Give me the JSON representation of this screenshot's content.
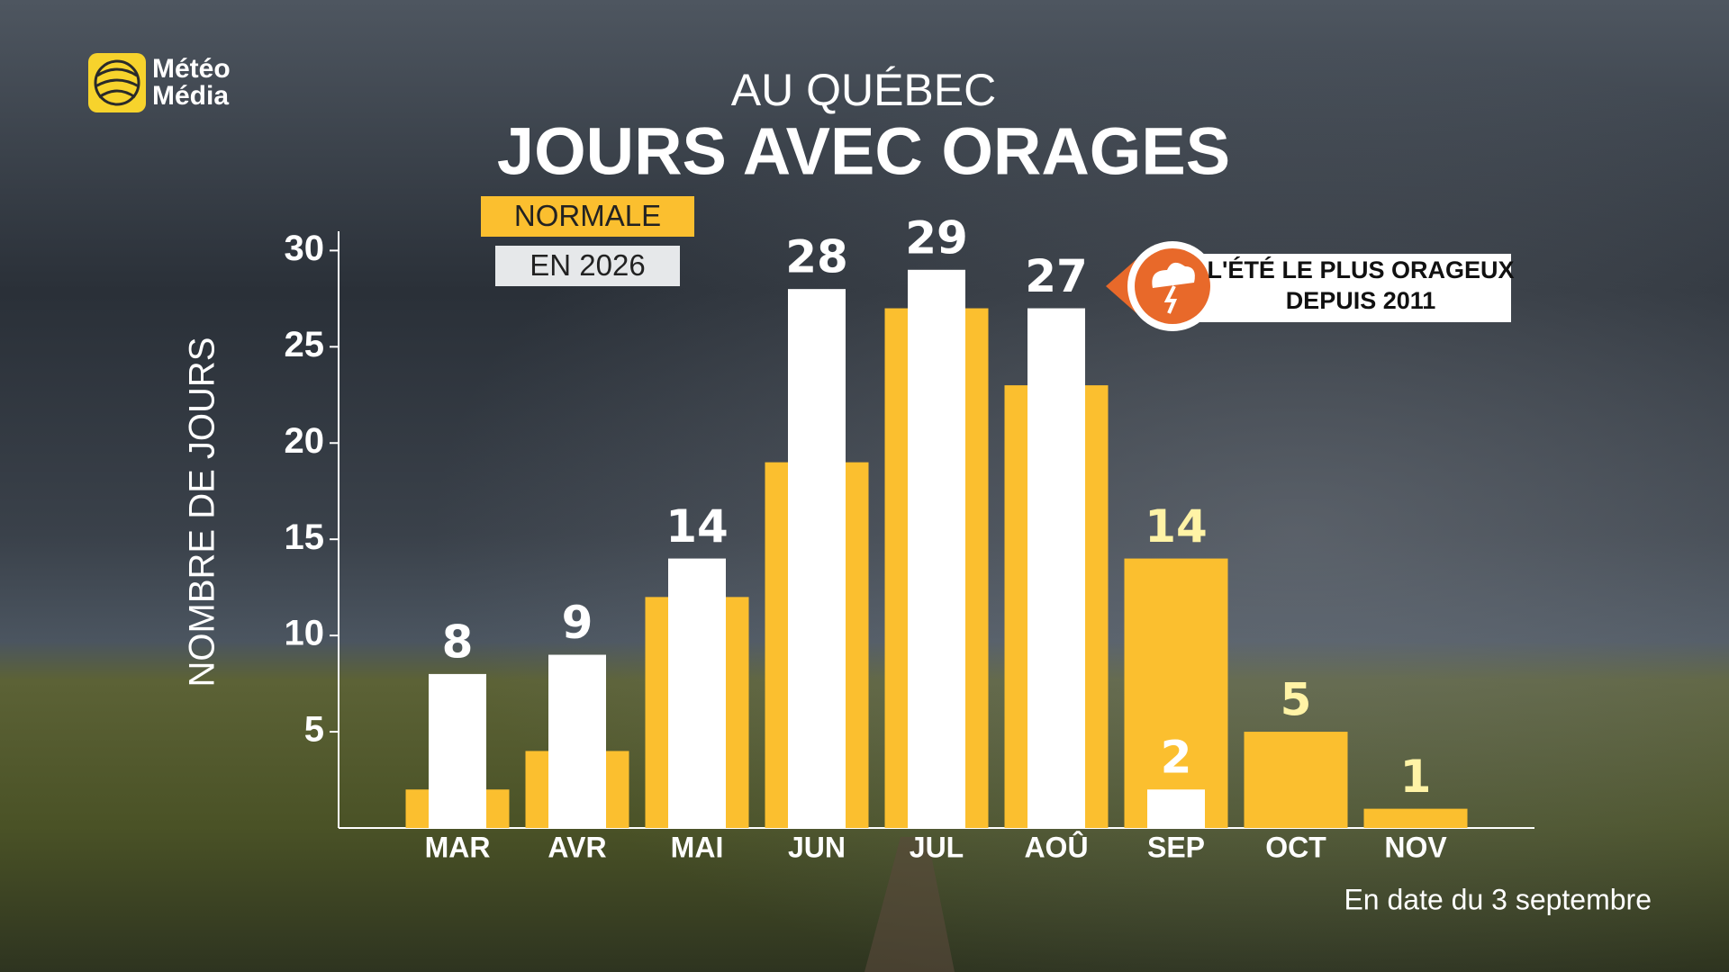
{
  "brand": [
    "Météo",
    "Média"
  ],
  "chart_data": {
    "type": "bar",
    "supertitle": "AU QUÉBEC",
    "title": "JOURS AVEC ORAGES",
    "ylabel": "NOMBRE DE JOURS",
    "categories": [
      "MAR",
      "AVR",
      "MAI",
      "JUN",
      "JUL",
      "AOÛ",
      "SEP",
      "OCT",
      "NOV"
    ],
    "series": [
      {
        "name": "NORMALE",
        "color": "#fbbf2f",
        "values": [
          2,
          4,
          12,
          19,
          27,
          23,
          14,
          5,
          1
        ]
      },
      {
        "name": "EN 2026",
        "color": "#ffffff",
        "values": [
          8,
          9,
          14,
          28,
          29,
          27,
          2,
          null,
          null
        ]
      }
    ],
    "ylim": [
      0,
      31
    ],
    "yticks": [
      5,
      10,
      15,
      20,
      25,
      30
    ],
    "grid": false,
    "annotation": [
      "L'ÉTÉ LE PLUS ORAGEUX",
      "DEPUIS 2011"
    ],
    "footnote": "En date du 3 septembre"
  }
}
